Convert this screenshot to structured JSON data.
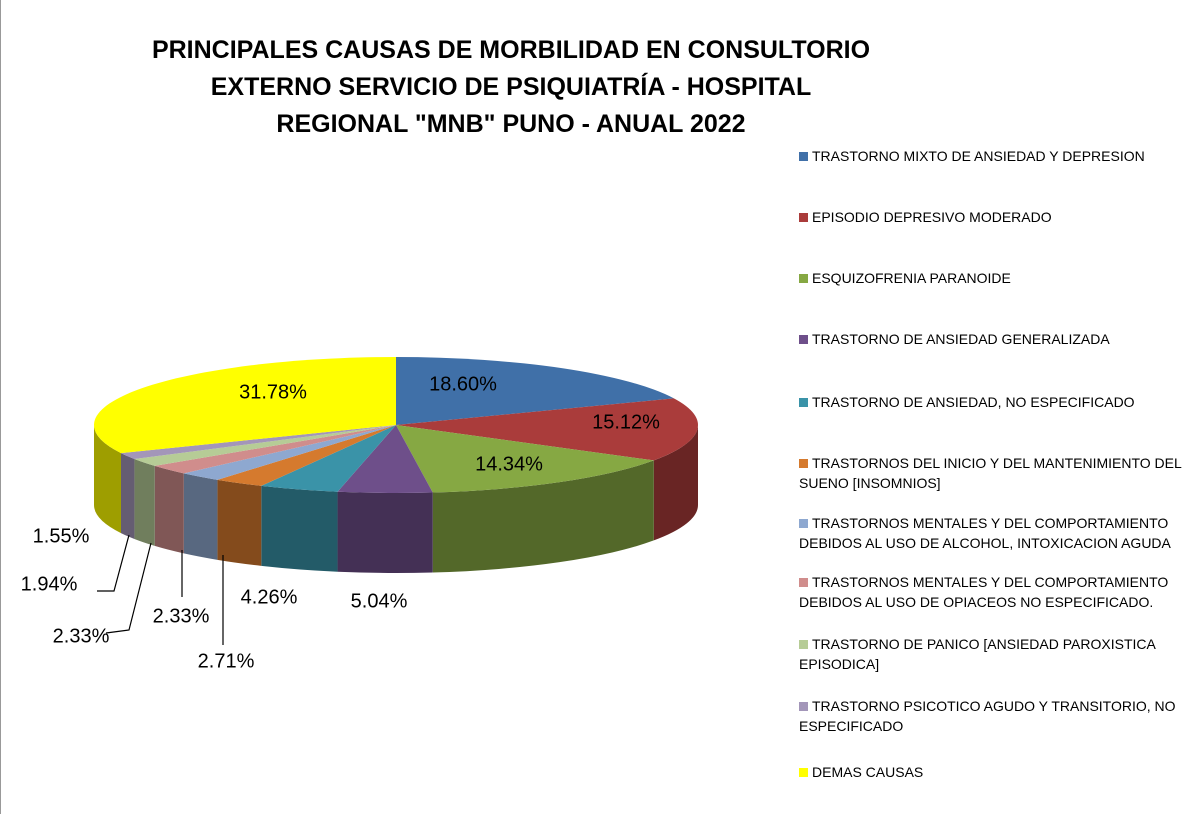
{
  "chart_data": {
    "type": "pie3d",
    "title": "PRINCIPALES CAUSAS DE MORBILIDAD EN CONSULTORIO EXTERNO SERVICIO DE PSIQUIATRÍA - HOSPITAL REGIONAL \"MNB\" PUNO - ANUAL 2022",
    "categories": [
      "TRASTORNO MIXTO DE ANSIEDAD Y DEPRESION",
      "EPISODIO DEPRESIVO MODERADO",
      "ESQUIZOFRENIA PARANOIDE",
      "TRASTORNO DE ANSIEDAD GENERALIZADA",
      "TRASTORNO DE ANSIEDAD, NO ESPECIFICADO",
      "TRASTORNOS DEL INICIO Y DEL MANTENIMIENTO DEL SUENO [INSOMNIOS]",
      "TRASTORNOS MENTALES Y DEL COMPORTAMIENTO DEBIDOS AL USO DE ALCOHOL, INTOXICACION AGUDA",
      "TRASTORNOS MENTALES Y DEL COMPORTAMIENTO DEBIDOS AL USO DE OPIACEOS NO ESPECIFICADO.",
      "TRASTORNO DE PANICO [ANSIEDAD PAROXISTICA EPISODICA]",
      "TRASTORNO PSICOTICO AGUDO Y TRANSITORIO, NO ESPECIFICADO",
      "DEMAS CAUSAS"
    ],
    "values": [
      18.6,
      15.12,
      14.34,
      5.04,
      4.26,
      2.71,
      2.33,
      2.33,
      1.94,
      1.55,
      31.78
    ],
    "value_labels": [
      "18.60%",
      "15.12%",
      "14.34%",
      "5.04%",
      "4.26%",
      "2.71%",
      "2.33%",
      "2.33%",
      "1.94%",
      "1.55%",
      "31.78%"
    ],
    "colors": [
      "#4070a8",
      "#aa3c3b",
      "#86a843",
      "#6e4f8a",
      "#3a93a8",
      "#d57a2e",
      "#8ea8d0",
      "#d08d8c",
      "#b6cc96",
      "#a396b9",
      "#ffff00"
    ]
  }
}
